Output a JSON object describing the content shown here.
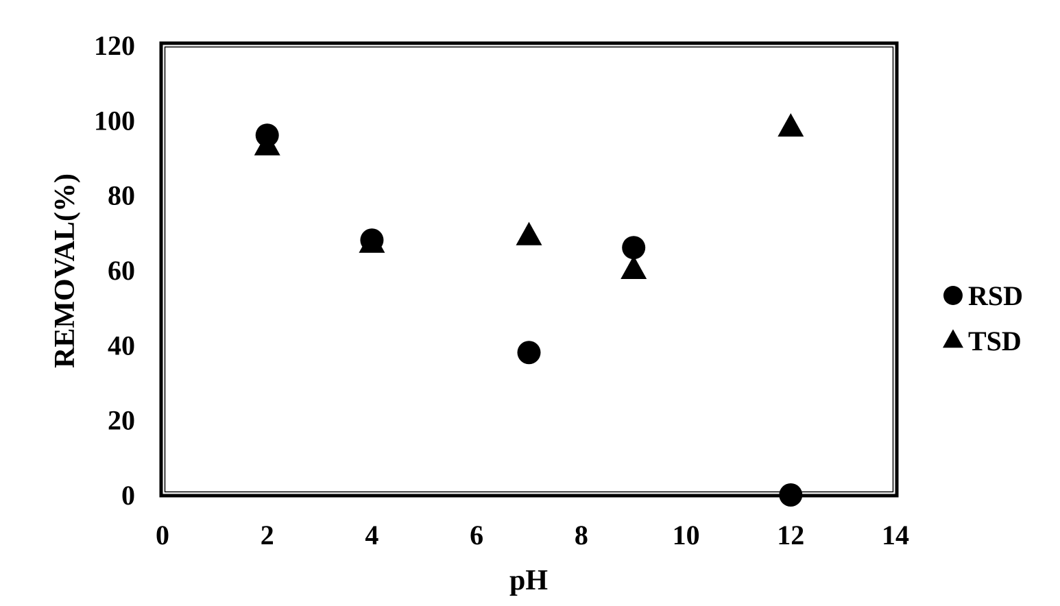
{
  "chart_data": {
    "type": "scatter",
    "title": "",
    "xlabel": "pH",
    "ylabel": "REMOVAL(%)",
    "xlim": [
      0,
      14
    ],
    "ylim": [
      0,
      120
    ],
    "xticks": [
      0,
      2,
      4,
      6,
      8,
      10,
      12,
      14
    ],
    "yticks": [
      0,
      20,
      40,
      60,
      80,
      100,
      120
    ],
    "grid": false,
    "legend_position": "right",
    "series": [
      {
        "name": "RSD",
        "marker": "circle",
        "color": "#000000",
        "points": [
          {
            "x": 2,
            "y": 96
          },
          {
            "x": 4,
            "y": 68
          },
          {
            "x": 7,
            "y": 38
          },
          {
            "x": 9,
            "y": 66
          },
          {
            "x": 12,
            "y": 0
          }
        ]
      },
      {
        "name": "TSD",
        "marker": "triangle",
        "color": "#000000",
        "points": [
          {
            "x": 2,
            "y": 93
          },
          {
            "x": 4,
            "y": 67
          },
          {
            "x": 7,
            "y": 69
          },
          {
            "x": 9,
            "y": 60
          },
          {
            "x": 12,
            "y": 98
          }
        ]
      }
    ]
  }
}
